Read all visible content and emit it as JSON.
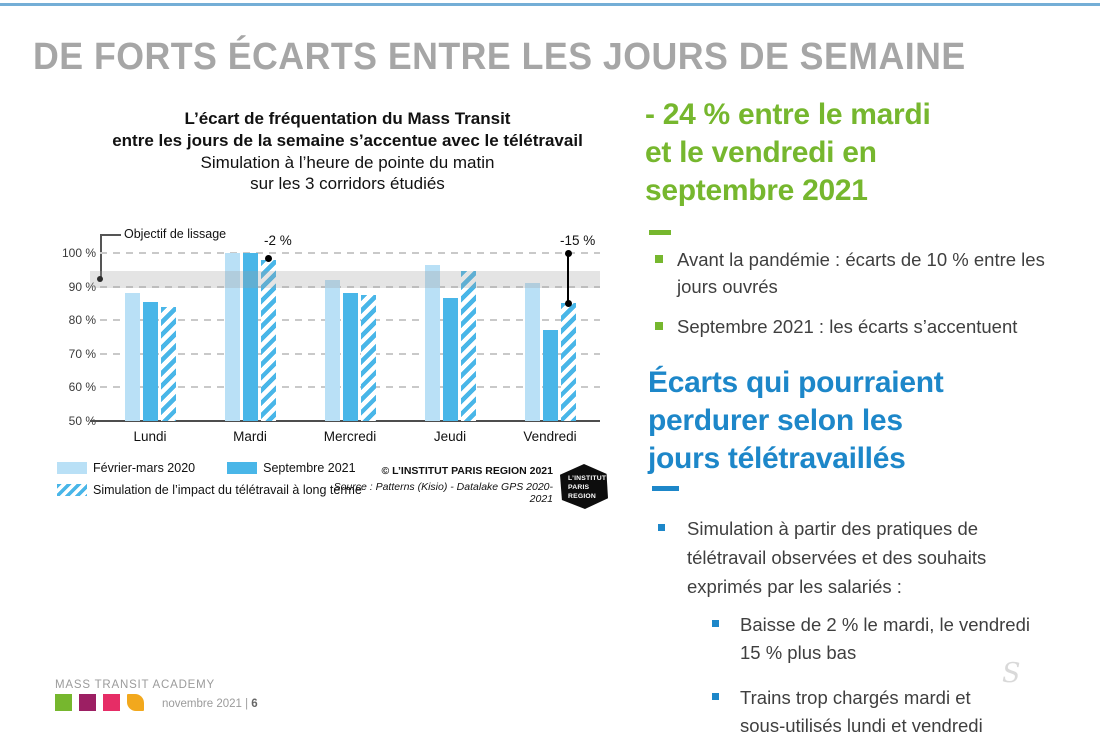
{
  "slide": {
    "title": "DE FORTS ÉCARTS ENTRE LES JOURS DE SEMAINE"
  },
  "chart": {
    "title_lines": [
      "L’écart de fréquentation du Mass Transit",
      "entre les jours de la semaine s’accentue avec le télétravail"
    ],
    "subtitle_lines": [
      "Simulation à l’heure de pointe du matin",
      "sur les 3 corridors étudiés"
    ],
    "copyright": "© L’INSTITUT PARIS REGION 2021",
    "source": "Source : Patterns (Kisio) - Datalake GPS 2020-2021",
    "logo": [
      "L’INSTITUT",
      "PARIS",
      "REGION"
    ]
  },
  "chart_data": {
    "type": "bar",
    "title": "L’écart de fréquentation du Mass Transit entre les jours de la semaine s’accentue avec le télétravail",
    "subtitle": "Simulation à l’heure de pointe du matin sur les 3 corridors étudiés",
    "categories": [
      "Lundi",
      "Mardi",
      "Mercredi",
      "Jeudi",
      "Vendredi"
    ],
    "series": [
      {
        "name": "Février-mars 2020",
        "style": "light",
        "color": "#b9e0f6",
        "values": [
          88,
          100,
          92,
          96.5,
          91
        ]
      },
      {
        "name": "Septembre 2021",
        "style": "solid",
        "color": "#49b6e8",
        "values": [
          85.5,
          100,
          88,
          86.5,
          77
        ]
      },
      {
        "name": "Simulation de l’impact du télétravail à long terme",
        "style": "hatched",
        "color": "#49b6e8",
        "values": [
          84,
          98,
          87.5,
          94.5,
          85
        ]
      }
    ],
    "ylim": [
      50,
      100
    ],
    "ytick_values": [
      100,
      90,
      80,
      70,
      60,
      50
    ],
    "ytick_labels": [
      "100 %",
      "90 %",
      "80 %",
      "70 %",
      "60 %",
      "50 %"
    ],
    "grid": "horizontal-dashed",
    "legend_position": "bottom-left",
    "target_band": {
      "label": "Objectif de lissage",
      "from": 89.5,
      "to": 94.5
    },
    "annotations": [
      {
        "text": "-2 %",
        "category": "Mardi",
        "type": "dot",
        "value": 98.5
      },
      {
        "text": "-15 %",
        "category": "Vendredi",
        "type": "range-line",
        "from": 100,
        "to": 85
      }
    ]
  },
  "right_panel": {
    "green_heading_lines": [
      "- 24 % entre le mardi",
      "et le vendredi en",
      "septembre 2021"
    ],
    "green_bullets": [
      [
        "Avant la pandémie : écarts de 10 % entre les",
        "jours ouvrés"
      ],
      [
        "Septembre 2021 : les écarts s’accentuent"
      ]
    ],
    "blue_heading_lines": [
      "Écarts qui pourraient",
      "perdurer selon les",
      "jours télétravaillés"
    ],
    "blue_bullet_lines": [
      "Simulation à partir des pratiques de",
      "télétravail observées et des souhaits",
      "exprimés par les salariés :"
    ],
    "sub_bullets": [
      [
        "Baisse de 2 % le mardi, le vendredi",
        "15 % plus bas"
      ],
      [
        "Trains trop chargés mardi et",
        "sous-utilisés lundi et vendredi"
      ]
    ],
    "watermark": "S",
    "green": "#76b72e",
    "blue": "#1d87c9"
  },
  "footer": {
    "brand": "MASS TRANSIT ACADEMY",
    "date_text": "novembre 2021 | ",
    "page": "6",
    "square_colors": [
      "#76b72e",
      "#9c1f63",
      "#e62d66",
      "#f2a81d"
    ]
  }
}
